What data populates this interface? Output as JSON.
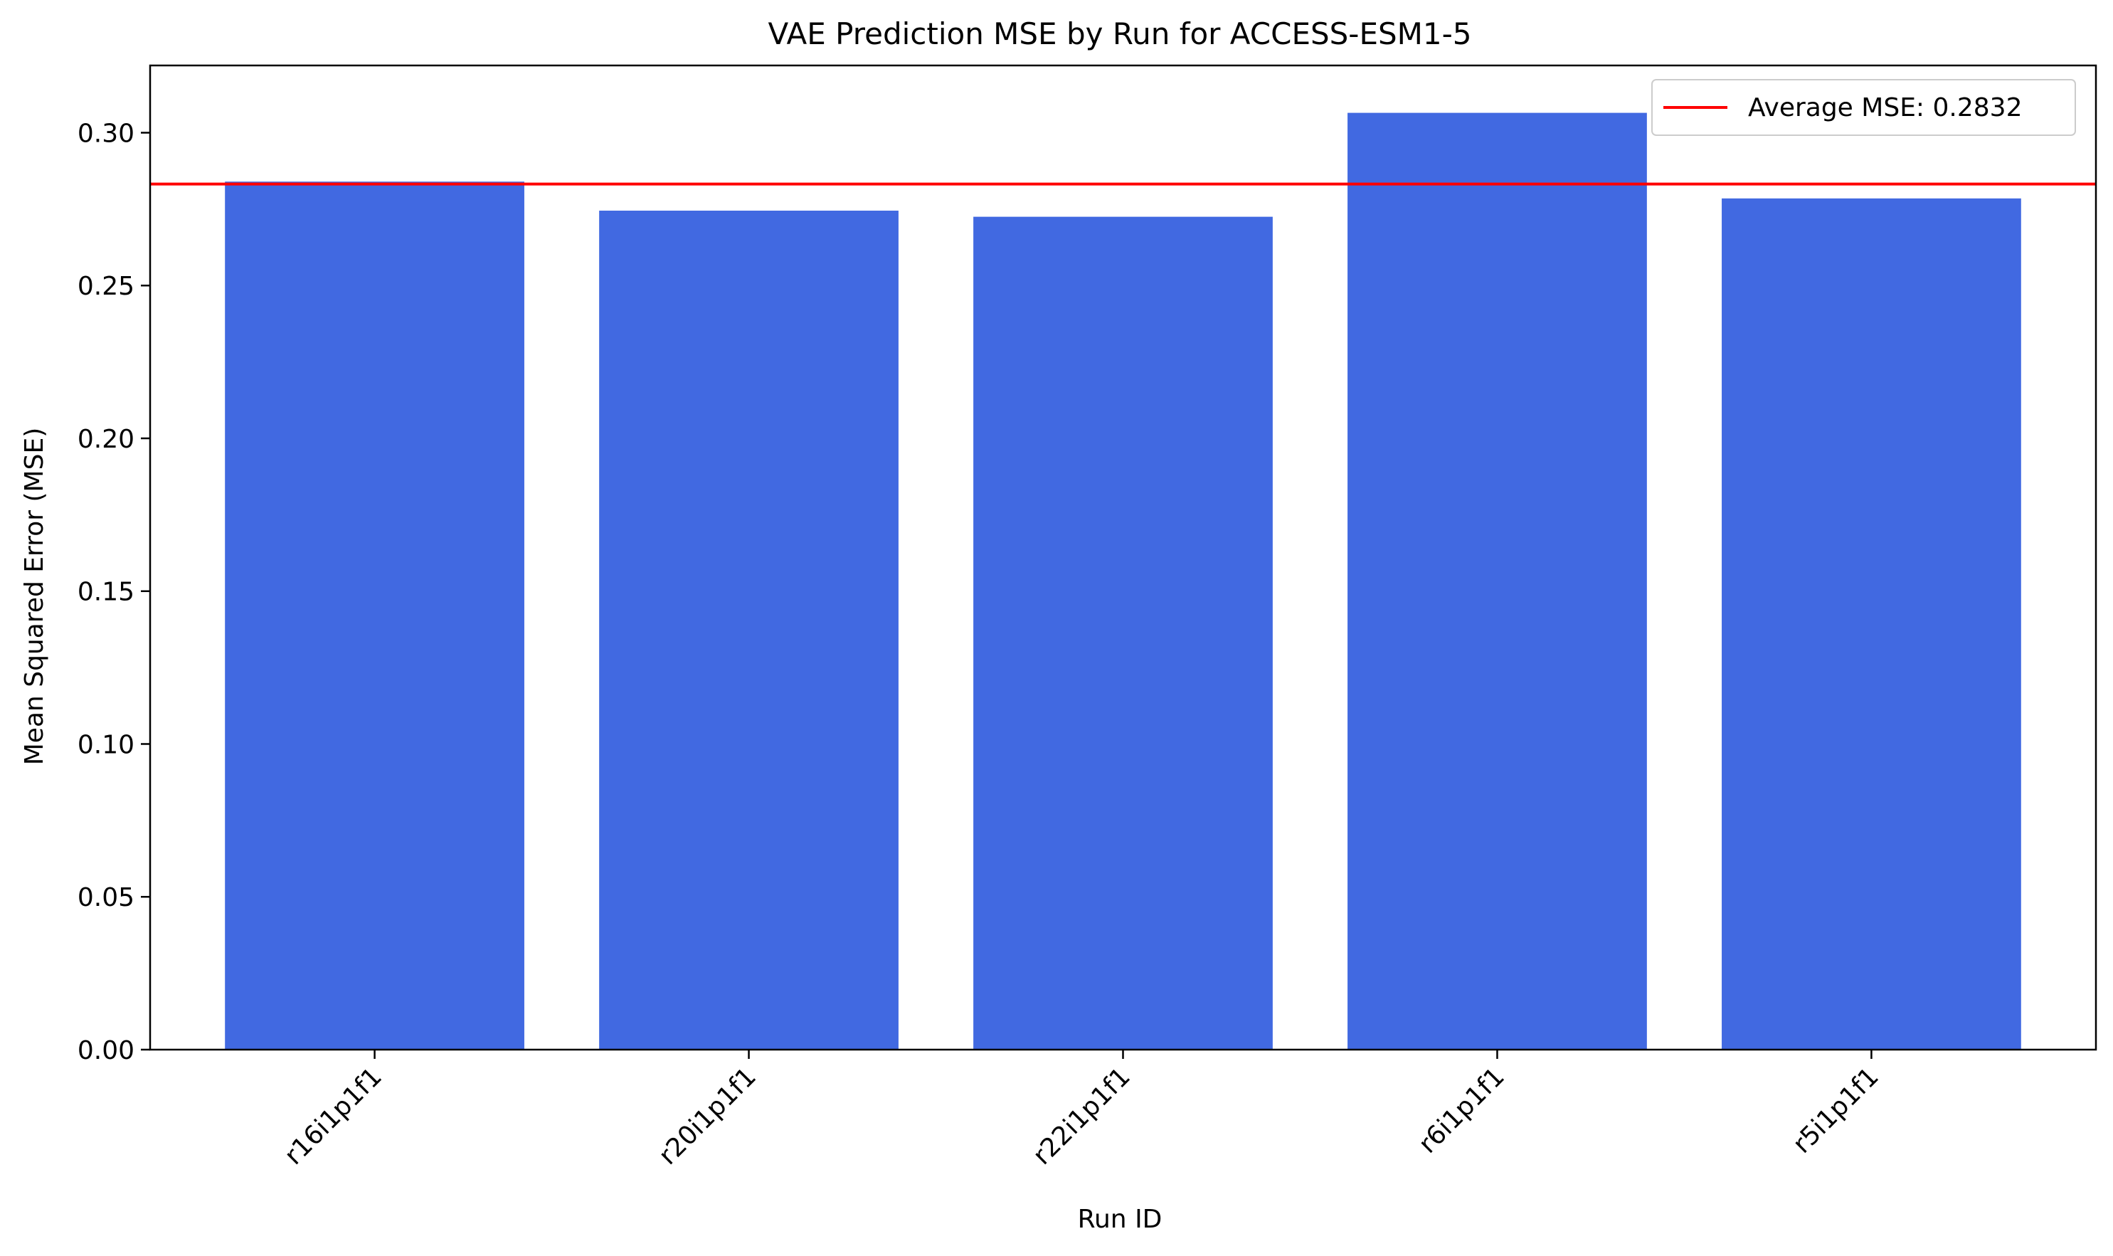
{
  "chart_data": {
    "type": "bar",
    "title": "VAE Prediction MSE by Run for ACCESS-ESM1-5",
    "xlabel": "Run ID",
    "ylabel": "Mean Squared Error (MSE)",
    "categories": [
      "r16i1p1f1",
      "r20i1p1f1",
      "r22i1p1f1",
      "r6i1p1f1",
      "r5i1p1f1"
    ],
    "values": [
      0.284,
      0.2745,
      0.2725,
      0.3065,
      0.2785
    ],
    "ylim": [
      0,
      0.322
    ],
    "yticks": [
      "0.00",
      "0.05",
      "0.10",
      "0.15",
      "0.20",
      "0.25",
      "0.30"
    ],
    "ytick_values": [
      0,
      0.05,
      0.1,
      0.15,
      0.2,
      0.25,
      0.3
    ],
    "bar_color": "#4169e1",
    "average_line": {
      "value": 0.2832,
      "color": "#ff0000",
      "label": "Average MSE: 0.2832"
    },
    "legend_position": "top-right",
    "grid": false
  }
}
